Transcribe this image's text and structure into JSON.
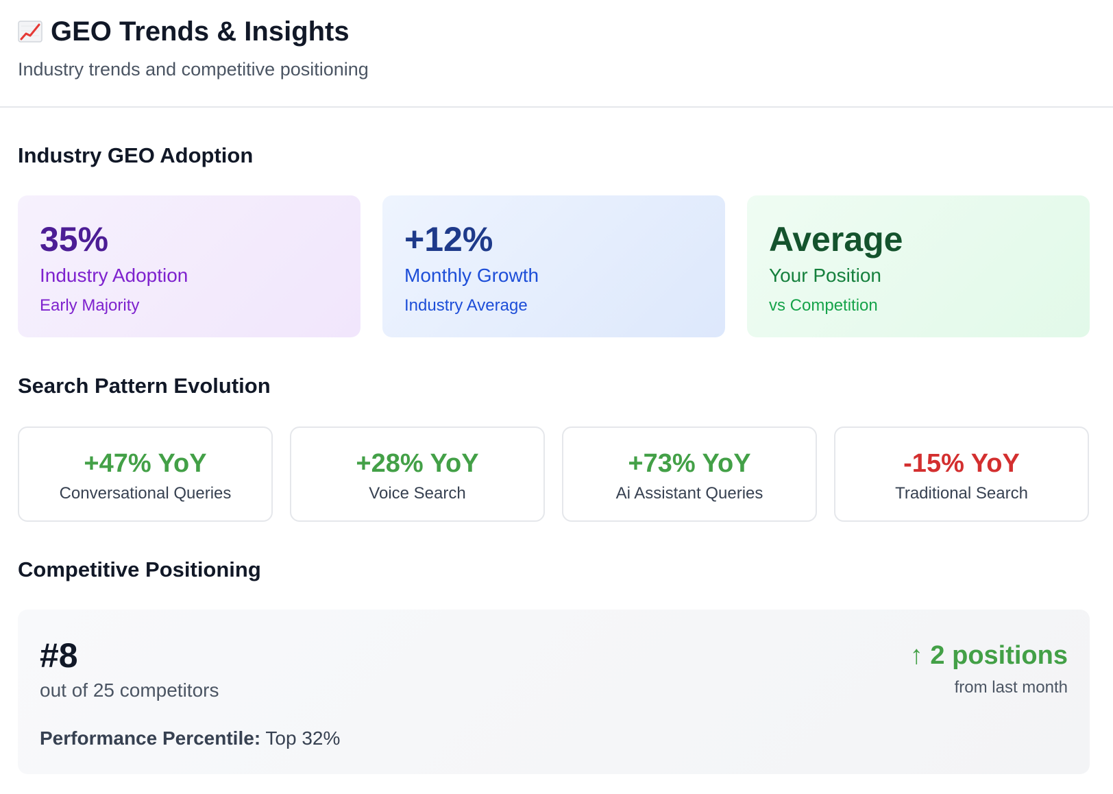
{
  "header": {
    "icon": "chart-increasing-icon",
    "title": "GEO Trends & Insights",
    "subtitle": "Industry trends and competitive positioning"
  },
  "adoption": {
    "title": "Industry GEO Adoption",
    "cards": [
      {
        "value": "35%",
        "label": "Industry Adoption",
        "sub": "Early Majority",
        "color": "#4c1d95"
      },
      {
        "value": "+12%",
        "label": "Monthly Growth",
        "sub": "Industry Average",
        "color": "#1e3a8a"
      },
      {
        "value": "Average",
        "label": "Your Position",
        "sub": "vs Competition",
        "color": "#14532d"
      }
    ]
  },
  "patterns": {
    "title": "Search Pattern Evolution",
    "items": [
      {
        "value": "+47% YoY",
        "label": "Conversational Queries",
        "trend": "up"
      },
      {
        "value": "+28% YoY",
        "label": "Voice Search",
        "trend": "up"
      },
      {
        "value": "+73% YoY",
        "label": "Ai Assistant Queries",
        "trend": "up"
      },
      {
        "value": "-15% YoY",
        "label": "Traditional Search",
        "trend": "down"
      }
    ],
    "colors": {
      "up": "#43a047",
      "down": "#d32f2f"
    }
  },
  "competitive": {
    "title": "Competitive Positioning",
    "rank": "#8",
    "rank_sub": "out of 25 competitors",
    "change": "↑ 2 positions",
    "change_sub": "from last month",
    "percentile_label": "Performance Percentile:",
    "percentile_value": "Top 32%"
  }
}
